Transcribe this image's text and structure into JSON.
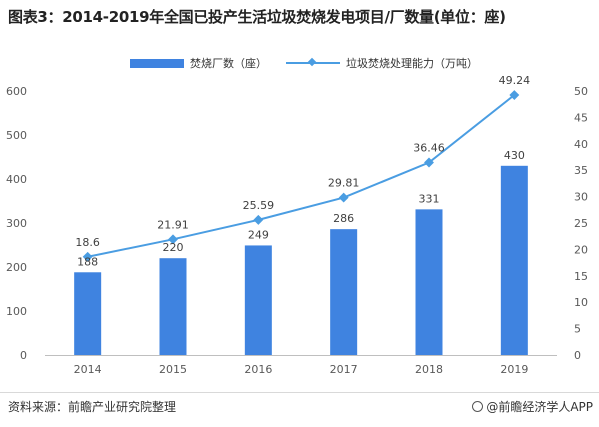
{
  "title": "图表3：2014-2019年全国已投产生活垃圾焚烧发电项目/厂数量(单位：座)",
  "source": "资料来源：前瞻产业研究院整理",
  "brand": "@前瞻经济学人APP",
  "colors": {
    "bar": "#3f83e0",
    "line": "#4a9de2",
    "axis": "#bfbfbf",
    "text": "#595959"
  },
  "chart_data": {
    "type": "bar",
    "categories": [
      "2014",
      "2015",
      "2016",
      "2017",
      "2018",
      "2019"
    ],
    "series": [
      {
        "name": "焚烧厂数（座）",
        "type": "bar",
        "axis": "left",
        "values": [
          188,
          220,
          249,
          286,
          331,
          430
        ]
      },
      {
        "name": "垃圾焚烧处理能力（万吨）",
        "type": "line",
        "axis": "right",
        "values": [
          18.6,
          21.91,
          25.59,
          29.81,
          36.46,
          49.24
        ]
      }
    ],
    "y_left": {
      "min": 0,
      "max": 600,
      "ticks": [
        0,
        100,
        200,
        300,
        400,
        500,
        600
      ]
    },
    "y_right": {
      "min": 0,
      "max": 50,
      "ticks": [
        0,
        5,
        10,
        15,
        20,
        25,
        30,
        35,
        40,
        45,
        50
      ]
    },
    "bar_labels": [
      "188",
      "220",
      "249",
      "286",
      "331",
      "430"
    ],
    "line_labels": [
      "18.6",
      "21.91",
      "25.59",
      "29.81",
      "36.46",
      "49.24"
    ],
    "legend_position": "top-center",
    "grid": false
  }
}
